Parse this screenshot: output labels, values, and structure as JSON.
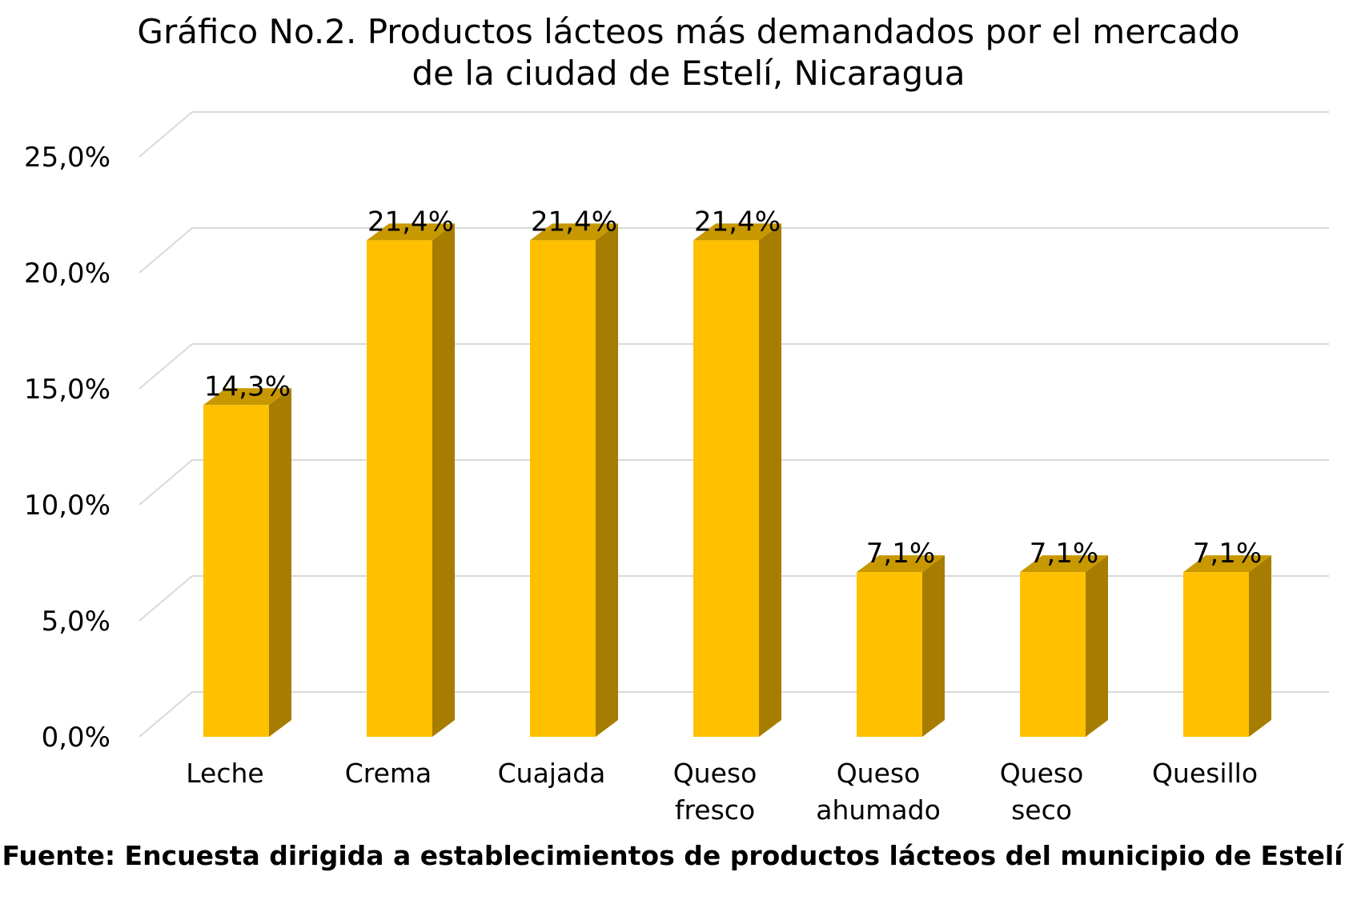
{
  "chart_data": {
    "type": "bar",
    "title": "Gráfico No.2. Productos lácteos más demandados por el mercado de la ciudad de Estelí, Nicaragua",
    "title_lines": [
      "Gráfico No.2. Productos lácteos más demandados por el mercado",
      "de la ciudad de Estelí, Nicaragua"
    ],
    "categories": [
      "Leche",
      "Crema",
      "Cuajada",
      "Queso fresco",
      "Queso ahumado",
      "Queso seco",
      "Quesillo"
    ],
    "category_lines": [
      [
        "Leche"
      ],
      [
        "Crema"
      ],
      [
        "Cuajada"
      ],
      [
        "Queso",
        "fresco"
      ],
      [
        "Queso",
        "ahumado"
      ],
      [
        "Queso",
        "seco"
      ],
      [
        "Quesillo"
      ]
    ],
    "values": [
      14.3,
      21.4,
      21.4,
      21.4,
      7.1,
      7.1,
      7.1
    ],
    "data_labels": [
      "14,3%",
      "21,4%",
      "21,4%",
      "21,4%",
      "7,1%",
      "7,1%",
      "7,1%"
    ],
    "ylim": [
      0,
      25
    ],
    "yticks": [
      0,
      5,
      10,
      15,
      20,
      25
    ],
    "ytick_labels": [
      "0,0%",
      "5,0%",
      "10,0%",
      "15,0%",
      "20,0%",
      "25,0%"
    ],
    "xlabel": "",
    "ylabel": "",
    "grid": true,
    "legend": "none",
    "style": "3d-column",
    "colors": {
      "bar_front": "#FFC000",
      "bar_side": "#A67D00",
      "bar_top": "#C89800",
      "grid": "#D9D9D9"
    }
  },
  "source": "Fuente: Encuesta dirigida a establecimientos de productos lácteos del municipio de Estelí"
}
